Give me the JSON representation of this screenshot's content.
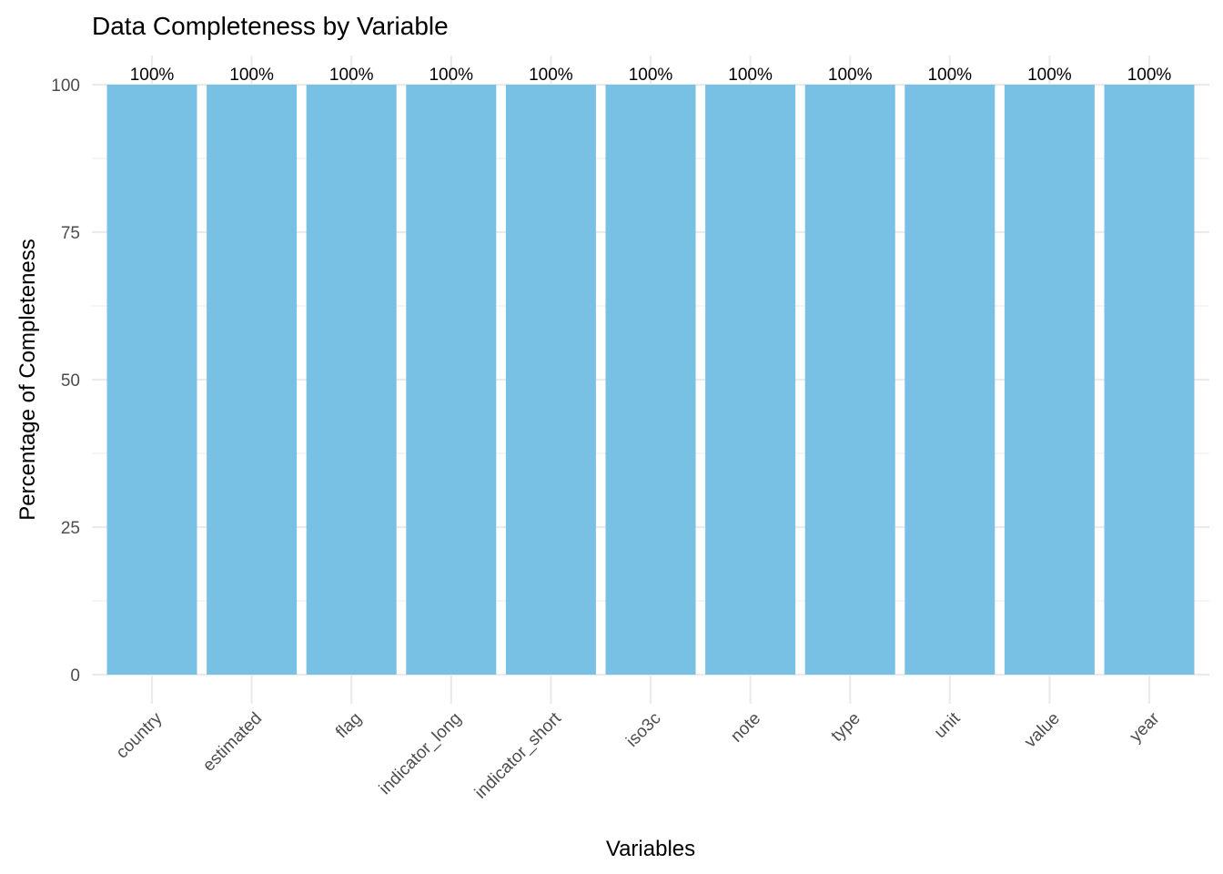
{
  "chart_data": {
    "type": "bar",
    "title": "Data Completeness by Variable",
    "xlabel": "Variables",
    "ylabel": "Percentage of Completeness",
    "categories": [
      "country",
      "estimated",
      "flag",
      "indicator_long",
      "indicator_short",
      "iso3c",
      "note",
      "type",
      "unit",
      "value",
      "year"
    ],
    "values": [
      100,
      100,
      100,
      100,
      100,
      100,
      100,
      100,
      100,
      100,
      100
    ],
    "data_labels": [
      "100%",
      "100%",
      "100%",
      "100%",
      "100%",
      "100%",
      "100%",
      "100%",
      "100%",
      "100%",
      "100%"
    ],
    "ylim": [
      0,
      100
    ],
    "yticks": [
      "0",
      "25",
      "50",
      "75",
      "100"
    ],
    "grid": true,
    "legend": "none",
    "bar_color": "#78C1E4"
  }
}
